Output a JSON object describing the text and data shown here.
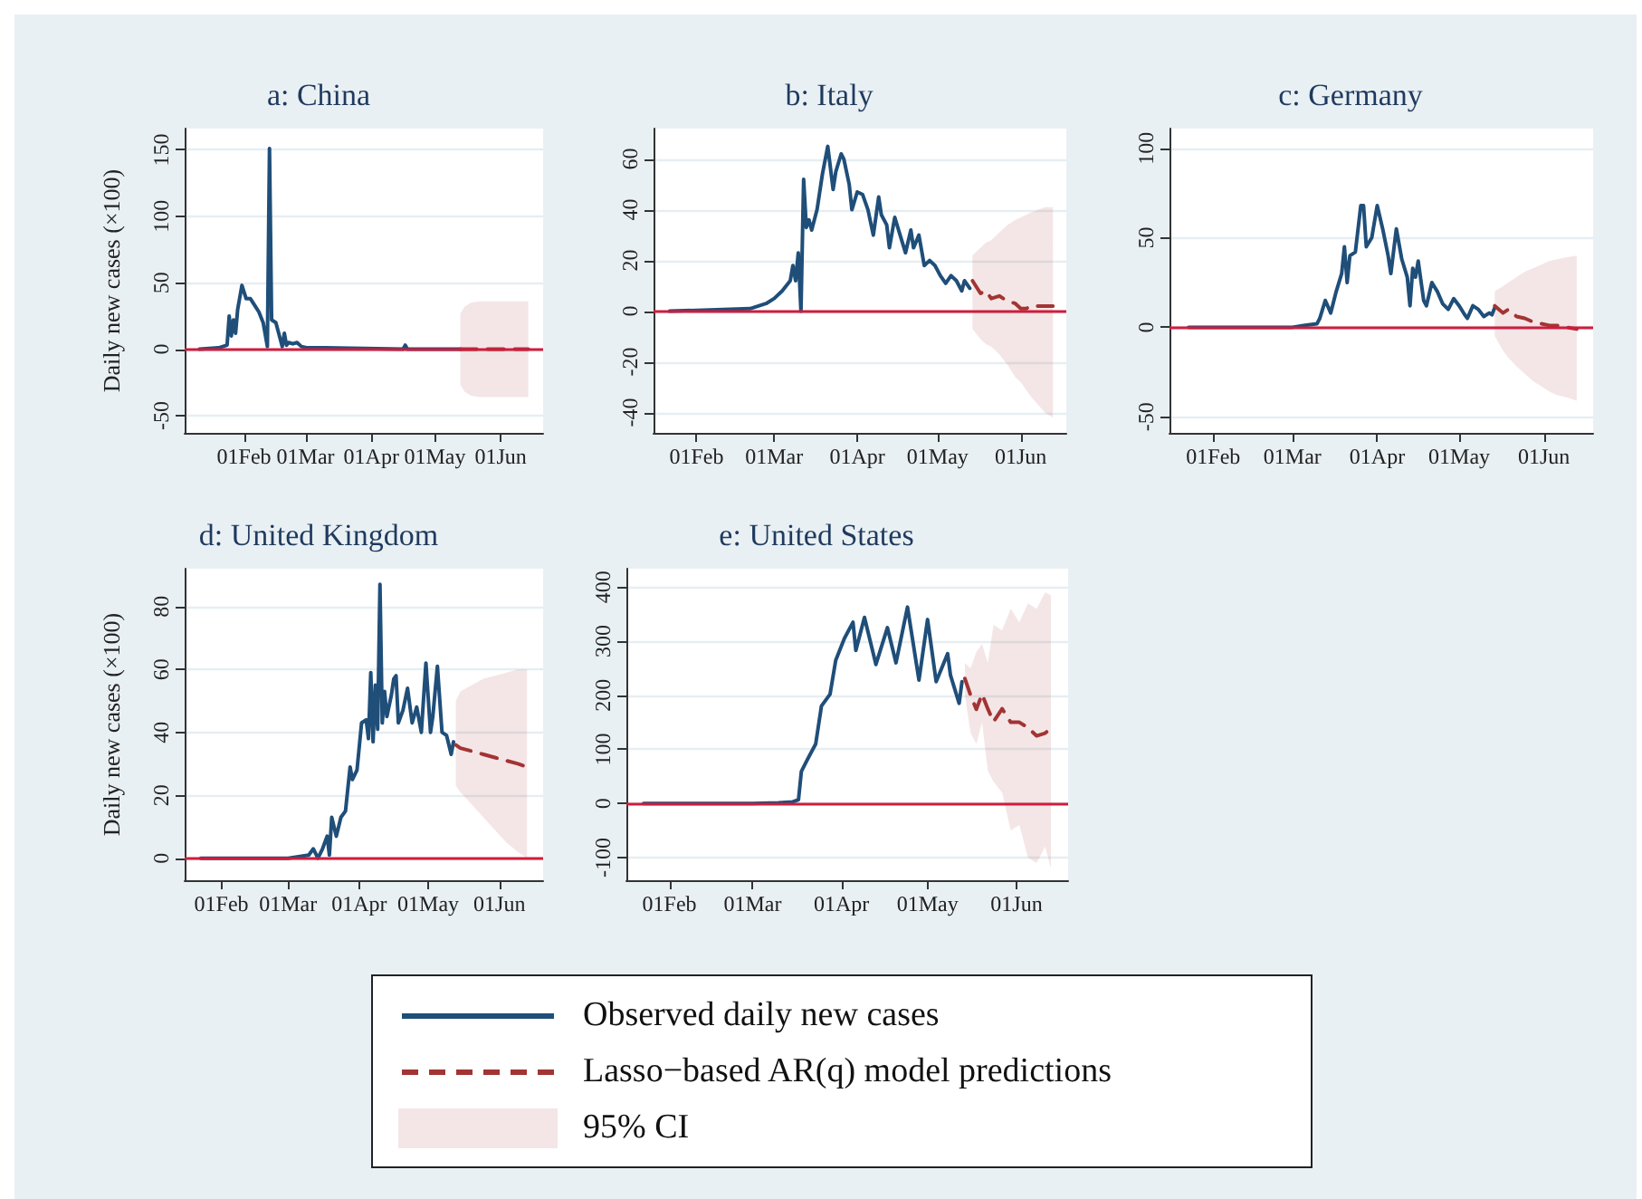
{
  "chart_data": [
    {
      "type": "line",
      "title": "a: China",
      "ylabel": "Daily new cases (×100)",
      "xlim": [
        "--01-04",
        "--06-21"
      ],
      "ylim": [
        -63,
        166
      ],
      "yticks": [
        -50,
        0,
        50,
        100,
        150
      ],
      "xticks": [
        {
          "value": "--02-01",
          "label": "01Feb"
        },
        {
          "value": "--03-01",
          "label": "01Mar"
        },
        {
          "value": "--04-01",
          "label": "01Apr"
        },
        {
          "value": "--05-01",
          "label": "01May"
        },
        {
          "value": "--06-01",
          "label": "01Jun"
        }
      ],
      "grid": "y",
      "legend": "bottom",
      "annotations": [
        "95% CI"
      ],
      "ref_lines": [
        {
          "axis": "y",
          "value": 0,
          "color": "#d01c3c"
        }
      ],
      "series": [
        {
          "name": "Observed daily new cases",
          "color": "#1f4e79",
          "x": [
            "--01-11",
            "--01-20",
            "--01-24",
            "--01-25",
            "--01-26",
            "--01-27",
            "--01-28",
            "--01-29",
            "--01-31",
            "--02-02",
            "--02-04",
            "--02-06",
            "--02-08",
            "--02-10",
            "--02-12",
            "--02-13",
            "--02-14",
            "--02-16",
            "--02-18",
            "--02-19",
            "--02-20",
            "--02-21",
            "--02-22",
            "--02-24",
            "--02-26",
            "--02-28",
            "--03-02",
            "--03-10",
            "--04-16",
            "--04-17",
            "--04-18",
            "--05-13"
          ],
          "values": [
            0,
            1,
            3,
            25,
            10,
            22,
            12,
            30,
            48,
            38,
            38,
            33,
            28,
            20,
            2,
            151,
            22,
            20,
            8,
            2,
            12,
            3,
            5,
            4,
            5,
            2,
            1,
            1,
            0,
            3,
            0,
            0
          ]
        },
        {
          "name": "Lasso−based AR(q) model predictions",
          "color": "#a33434",
          "line_style": "dashed",
          "x": [
            "--05-13",
            "--05-15",
            "--05-18",
            "--05-22",
            "--06-01",
            "--06-14"
          ],
          "values": [
            0,
            0,
            0,
            0,
            0,
            0
          ],
          "lower": [
            -27,
            -32,
            -35,
            -36,
            -36,
            -36
          ],
          "upper": [
            27,
            32,
            35,
            36,
            36,
            36
          ]
        }
      ]
    },
    {
      "type": "line",
      "title": "b: Italy",
      "xlim": [
        "--01-16",
        "--06-18"
      ],
      "ylim": [
        -48,
        72
      ],
      "yticks": [
        -40,
        -20,
        0,
        20,
        40,
        60
      ],
      "xticks": [
        {
          "value": "--02-01",
          "label": "01Feb"
        },
        {
          "value": "--03-01",
          "label": "01Mar"
        },
        {
          "value": "--04-01",
          "label": "01Apr"
        },
        {
          "value": "--05-01",
          "label": "01May"
        },
        {
          "value": "--06-01",
          "label": "01Jun"
        }
      ],
      "grid": "y",
      "ref_lines": [
        {
          "axis": "y",
          "value": 0,
          "color": "#d01c3c"
        }
      ],
      "series": [
        {
          "color": "#1f4e79",
          "x": [
            "--01-22",
            "--02-21",
            "--02-27",
            "--03-01",
            "--03-04",
            "--03-07",
            "--03-08",
            "--03-09",
            "--03-10",
            "--03-11",
            "--03-12",
            "--03-13",
            "--03-14",
            "--03-15",
            "--03-17",
            "--03-19",
            "--03-21",
            "--03-23",
            "--03-24",
            "--03-26",
            "--03-27",
            "--03-29",
            "--03-30",
            "--04-01",
            "--04-03",
            "--04-05",
            "--04-07",
            "--04-09",
            "--04-10",
            "--04-12",
            "--04-13",
            "--04-15",
            "--04-17",
            "--04-19",
            "--04-21",
            "--04-22",
            "--04-24",
            "--04-26",
            "--04-28",
            "--04-30",
            "--05-02",
            "--05-04",
            "--05-06",
            "--05-08",
            "--05-10",
            "--05-11",
            "--05-13"
          ],
          "values": [
            0,
            1,
            3,
            5,
            8,
            12,
            18,
            12,
            23,
            0,
            52,
            33,
            36,
            32,
            40,
            54,
            65,
            48,
            55,
            62,
            60,
            50,
            40,
            47,
            46,
            40,
            30,
            45,
            38,
            34,
            25,
            37,
            30,
            23,
            32,
            25,
            30,
            18,
            20,
            18,
            14,
            11,
            14,
            12,
            8,
            12,
            9
          ]
        },
        {
          "color": "#a33434",
          "line_style": "dashed",
          "x": [
            "--05-14",
            "--05-17",
            "--05-19",
            "--05-21",
            "--05-24",
            "--05-27",
            "--05-30",
            "--06-01",
            "--06-03",
            "--06-05",
            "--06-10",
            "--06-13"
          ],
          "values": [
            12,
            7,
            8,
            5,
            6,
            4,
            3,
            1,
            1,
            2,
            2,
            2
          ],
          "lower": [
            -7,
            -11,
            -13,
            -14,
            -17,
            -21,
            -26,
            -28,
            -31,
            -34,
            -40,
            -42
          ],
          "upper": [
            22,
            25,
            27,
            28,
            31,
            34,
            36,
            37,
            38,
            39,
            41,
            41
          ]
        }
      ]
    },
    {
      "type": "line",
      "title": "c: Germany",
      "xlim": [
        "--01-16",
        "--06-19"
      ],
      "ylim": [
        -59,
        111
      ],
      "yticks": [
        -50,
        0,
        50,
        100
      ],
      "xticks": [
        {
          "value": "--02-01",
          "label": "01Feb"
        },
        {
          "value": "--03-01",
          "label": "01Mar"
        },
        {
          "value": "--04-01",
          "label": "01Apr"
        },
        {
          "value": "--05-01",
          "label": "01May"
        },
        {
          "value": "--06-01",
          "label": "01Jun"
        }
      ],
      "grid": "y",
      "ref_lines": [
        {
          "axis": "y",
          "value": 0,
          "color": "#d01c3c"
        }
      ],
      "series": [
        {
          "color": "#1f4e79",
          "x": [
            "--01-23",
            "--03-01",
            "--03-05",
            "--03-10",
            "--03-11",
            "--03-12",
            "--03-13",
            "--03-15",
            "--03-17",
            "--03-19",
            "--03-20",
            "--03-21",
            "--03-22",
            "--03-24",
            "--03-26",
            "--03-27",
            "--03-28",
            "--03-30",
            "--04-01",
            "--04-03",
            "--04-05",
            "--04-06",
            "--04-08",
            "--04-10",
            "--04-12",
            "--04-13",
            "--04-14",
            "--04-15",
            "--04-16",
            "--04-18",
            "--04-19",
            "--04-21",
            "--04-23",
            "--04-25",
            "--04-27",
            "--04-29",
            "--05-01",
            "--05-03",
            "--05-04",
            "--05-06",
            "--05-08",
            "--05-10",
            "--05-12",
            "--05-13",
            "--05-14"
          ],
          "values": [
            0,
            0,
            1,
            2,
            5,
            10,
            15,
            8,
            20,
            30,
            45,
            25,
            40,
            42,
            68,
            68,
            45,
            50,
            68,
            55,
            40,
            30,
            55,
            38,
            28,
            12,
            33,
            28,
            37,
            15,
            12,
            25,
            20,
            13,
            10,
            16,
            12,
            7,
            5,
            12,
            10,
            6,
            8,
            7,
            11
          ]
        },
        {
          "color": "#a33434",
          "line_style": "dashed",
          "x": [
            "--05-14",
            "--05-17",
            "--05-19",
            "--05-22",
            "--05-25",
            "--05-28",
            "--05-31",
            "--06-03",
            "--06-06",
            "--06-09",
            "--06-13"
          ],
          "values": [
            12,
            8,
            10,
            6,
            5,
            3,
            2,
            1,
            1,
            0,
            -1
          ],
          "lower": [
            -5,
            -13,
            -17,
            -22,
            -26,
            -30,
            -33,
            -36,
            -38,
            -39,
            -41
          ],
          "upper": [
            20,
            23,
            25,
            28,
            31,
            33,
            35,
            37,
            38,
            39,
            40
          ]
        }
      ]
    },
    {
      "type": "line",
      "title": "d: United Kingdom",
      "ylabel": "Daily new cases (×100)",
      "xlim": [
        "--01-16",
        "--06-20"
      ],
      "ylim": [
        -7,
        92
      ],
      "yticks": [
        0,
        20,
        40,
        60,
        80
      ],
      "xticks": [
        {
          "value": "--02-01",
          "label": "01Feb"
        },
        {
          "value": "--03-01",
          "label": "01Mar"
        },
        {
          "value": "--04-01",
          "label": "01Apr"
        },
        {
          "value": "--05-01",
          "label": "01May"
        },
        {
          "value": "--06-01",
          "label": "01Jun"
        }
      ],
      "grid": "y",
      "ref_lines": [
        {
          "axis": "y",
          "value": 0,
          "color": "#d01c3c"
        }
      ],
      "series": [
        {
          "color": "#1f4e79",
          "x": [
            "--01-23",
            "--03-01",
            "--03-10",
            "--03-12",
            "--03-14",
            "--03-16",
            "--03-18",
            "--03-19",
            "--03-20",
            "--03-22",
            "--03-24",
            "--03-26",
            "--03-28",
            "--03-29",
            "--03-31",
            "--04-02",
            "--04-04",
            "--04-05",
            "--04-06",
            "--04-07",
            "--04-08",
            "--04-09",
            "--04-10",
            "--04-11",
            "--04-12",
            "--04-13",
            "--04-15",
            "--04-16",
            "--04-17",
            "--04-18",
            "--04-20",
            "--04-22",
            "--04-24",
            "--04-26",
            "--04-28",
            "--04-30",
            "--05-02",
            "--05-03",
            "--05-05",
            "--05-07",
            "--05-09",
            "--05-11",
            "--05-12"
          ],
          "values": [
            0,
            0,
            1,
            3,
            0,
            3,
            7,
            1,
            13,
            7,
            13,
            15,
            29,
            25,
            28,
            43,
            44,
            38,
            59,
            37,
            55,
            41,
            87,
            43,
            53,
            45,
            52,
            57,
            58,
            43,
            47,
            54,
            43,
            48,
            40,
            62,
            40,
            45,
            61,
            40,
            39,
            33,
            37
          ]
        },
        {
          "color": "#a33434",
          "line_style": "dashed",
          "x": [
            "--05-13",
            "--05-15",
            "--05-20",
            "--05-25",
            "--05-30",
            "--06-04",
            "--06-09",
            "--06-13"
          ],
          "values": [
            36,
            35,
            34,
            33,
            32,
            31,
            30,
            29
          ],
          "lower": [
            23,
            21,
            17,
            13,
            9,
            5,
            2,
            0
          ],
          "upper": [
            50,
            53,
            55,
            57,
            58,
            59,
            60,
            60
          ]
        }
      ]
    },
    {
      "type": "line",
      "title": "e: United States",
      "xlim": [
        "--01-17",
        "--06-19"
      ],
      "ylim": [
        -142,
        434
      ],
      "yticks": [
        -100,
        0,
        100,
        200,
        300,
        400
      ],
      "xticks": [
        {
          "value": "--02-01",
          "label": "01Feb"
        },
        {
          "value": "--03-01",
          "label": "01Mar"
        },
        {
          "value": "--04-01",
          "label": "01Apr"
        },
        {
          "value": "--05-01",
          "label": "01May"
        },
        {
          "value": "--06-01",
          "label": "01Jun"
        }
      ],
      "grid": "y",
      "ref_lines": [
        {
          "axis": "y",
          "value": 0,
          "color": "#d01c3c"
        }
      ],
      "series": [
        {
          "color": "#1f4e79",
          "x": [
            "--01-23",
            "--03-01",
            "--03-10",
            "--03-15",
            "--03-17",
            "--03-18",
            "--03-20",
            "--03-23",
            "--03-25",
            "--03-28",
            "--03-30",
            "--04-02",
            "--04-05",
            "--04-06",
            "--04-09",
            "--04-13",
            "--04-17",
            "--04-20",
            "--04-24",
            "--04-28",
            "--05-01",
            "--05-04",
            "--05-08",
            "--05-09",
            "--05-12",
            "--05-13"
          ],
          "values": [
            0,
            0,
            1,
            3,
            7,
            59,
            80,
            110,
            180,
            202,
            265,
            305,
            335,
            283,
            344,
            257,
            325,
            260,
            363,
            228,
            340,
            225,
            277,
            237,
            185,
            225
          ]
        },
        {
          "color": "#a33434",
          "line_style": "dashed",
          "x": [
            "--05-14",
            "--05-16",
            "--05-18",
            "--05-20",
            "--05-22",
            "--05-24",
            "--05-27",
            "--05-30",
            "--06-02",
            "--06-05",
            "--06-08",
            "--06-11",
            "--06-13"
          ],
          "values": [
            231,
            200,
            174,
            202,
            175,
            151,
            175,
            150,
            150,
            140,
            125,
            130,
            139
          ],
          "lower": [
            200,
            130,
            110,
            150,
            60,
            40,
            20,
            -50,
            -40,
            -100,
            -110,
            -80,
            -120
          ],
          "upper": [
            260,
            250,
            280,
            295,
            260,
            330,
            320,
            360,
            335,
            370,
            360,
            390,
            385
          ]
        }
      ]
    }
  ]
}
